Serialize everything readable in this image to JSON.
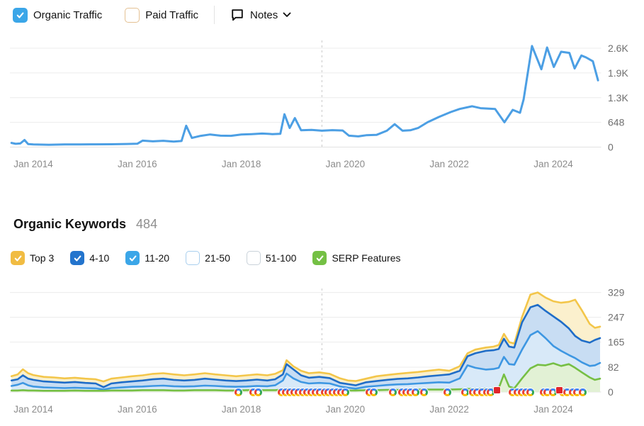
{
  "toolbar": {
    "organic_traffic": {
      "label": "Organic Traffic",
      "checked": true,
      "color": "#3ba6e8"
    },
    "paid_traffic": {
      "label": "Paid Traffic",
      "checked": false,
      "border_color": "#e4c193"
    },
    "notes": {
      "label": "Notes"
    }
  },
  "keywords_section": {
    "title": "Organic Keywords",
    "count": "484",
    "filters": [
      {
        "label": "Top 3",
        "checked": true,
        "color": "#f1bc42"
      },
      {
        "label": "4-10",
        "checked": true,
        "color": "#2374cd"
      },
      {
        "label": "11-20",
        "checked": true,
        "color": "#3ba6e8"
      },
      {
        "label": "21-50",
        "checked": false,
        "border_color": "#a9cfee"
      },
      {
        "label": "51-100",
        "checked": false,
        "border_color": "#c9d2d9"
      },
      {
        "label": "SERP Features",
        "checked": true,
        "color": "#74c044"
      }
    ]
  },
  "chart_data": [
    {
      "name": "organic-traffic",
      "type": "line",
      "title": "Organic Traffic",
      "line_color": "#4c9fe4",
      "line_width": 3,
      "xlim": [
        2013.55,
        2024.92
      ],
      "ylim": [
        0,
        2820
      ],
      "grid": true,
      "note_line_x": 2019.55,
      "x_ticks": [
        {
          "year": 2014,
          "label": "Jan 2014"
        },
        {
          "year": 2016,
          "label": "Jan 2016"
        },
        {
          "year": 2018,
          "label": "Jan 2018"
        },
        {
          "year": 2020,
          "label": "Jan 2020"
        },
        {
          "year": 2022,
          "label": "Jan 2022"
        },
        {
          "year": 2024,
          "label": "Jan 2024"
        }
      ],
      "y_ticks": [
        {
          "v": 0,
          "label": "0"
        },
        {
          "v": 648,
          "label": "648"
        },
        {
          "v": 1296,
          "label": "1.3K"
        },
        {
          "v": 1944,
          "label": "1.9K"
        },
        {
          "v": 2592,
          "label": "2.6K"
        }
      ],
      "x": [
        2013.58,
        2013.66,
        2013.75,
        2013.83,
        2013.9,
        2014.0,
        2014.3,
        2014.6,
        2014.9,
        2015.2,
        2015.5,
        2015.8,
        2016.0,
        2016.1,
        2016.3,
        2016.5,
        2016.7,
        2016.85,
        2016.94,
        2017.05,
        2017.2,
        2017.4,
        2017.6,
        2017.8,
        2018.0,
        2018.2,
        2018.4,
        2018.6,
        2018.75,
        2018.83,
        2018.93,
        2019.03,
        2019.15,
        2019.35,
        2019.55,
        2019.75,
        2019.95,
        2020.07,
        2020.25,
        2020.4,
        2020.6,
        2020.8,
        2020.95,
        2021.1,
        2021.25,
        2021.4,
        2021.58,
        2021.8,
        2022.03,
        2022.2,
        2022.44,
        2022.6,
        2022.88,
        2023.06,
        2023.22,
        2023.36,
        2023.43,
        2023.59,
        2023.77,
        2023.88,
        2024.01,
        2024.15,
        2024.31,
        2024.41,
        2024.54,
        2024.63,
        2024.76,
        2024.86
      ],
      "values": [
        110,
        85,
        95,
        185,
        80,
        70,
        62,
        68,
        70,
        72,
        75,
        82,
        88,
        170,
        150,
        165,
        145,
        160,
        560,
        240,
        290,
        330,
        300,
        295,
        330,
        340,
        355,
        340,
        350,
        860,
        500,
        760,
        440,
        450,
        430,
        445,
        435,
        300,
        280,
        310,
        320,
        430,
        600,
        430,
        440,
        500,
        650,
        790,
        920,
        1000,
        1070,
        1020,
        1000,
        650,
        975,
        900,
        1250,
        2650,
        2040,
        2610,
        2100,
        2500,
        2470,
        2060,
        2400,
        2350,
        2250,
        1750
      ]
    },
    {
      "name": "organic-keywords",
      "type": "stacked-area",
      "title": "Organic Keywords",
      "total_keywords": 484,
      "representation": "cumulative-lines",
      "xlim": [
        2013.55,
        2024.92
      ],
      "ylim": [
        0,
        345
      ],
      "grid": true,
      "note_line_x": 2019.55,
      "draw_order": [
        2,
        1,
        0,
        3
      ],
      "x_ticks": [
        {
          "year": 2014,
          "label": "Jan 2014"
        },
        {
          "year": 2016,
          "label": "Jan 2016"
        },
        {
          "year": 2018,
          "label": "Jan 2018"
        },
        {
          "year": 2020,
          "label": "Jan 2020"
        },
        {
          "year": 2022,
          "label": "Jan 2022"
        },
        {
          "year": 2024,
          "label": "Jan 2024"
        }
      ],
      "y_ticks": [
        {
          "v": 0,
          "label": "0"
        },
        {
          "v": 82,
          "label": "82"
        },
        {
          "v": 165,
          "label": "165"
        },
        {
          "v": 247,
          "label": "247"
        },
        {
          "v": 329,
          "label": "329"
        }
      ],
      "x": [
        2013.58,
        2013.7,
        2013.8,
        2013.9,
        2014.0,
        2014.2,
        2014.4,
        2014.6,
        2014.8,
        2015.0,
        2015.2,
        2015.35,
        2015.5,
        2015.7,
        2015.9,
        2016.1,
        2016.3,
        2016.5,
        2016.7,
        2016.9,
        2017.1,
        2017.3,
        2017.5,
        2017.7,
        2017.9,
        2018.1,
        2018.3,
        2018.5,
        2018.65,
        2018.8,
        2018.87,
        2019.0,
        2019.15,
        2019.3,
        2019.5,
        2019.7,
        2019.9,
        2020.05,
        2020.2,
        2020.4,
        2020.6,
        2020.8,
        2021.0,
        2021.2,
        2021.4,
        2021.6,
        2021.8,
        2022.0,
        2022.2,
        2022.35,
        2022.5,
        2022.7,
        2022.85,
        2022.95,
        2023.05,
        2023.15,
        2023.25,
        2023.4,
        2023.56,
        2023.7,
        2023.85,
        2024.0,
        2024.15,
        2024.3,
        2024.42,
        2024.55,
        2024.7,
        2024.8,
        2024.9
      ],
      "series": [
        {
          "name": "Top 3 (cumulative top line)",
          "line": "#f3c64a",
          "fill": "#fbf0cd",
          "fill_down_to": 1,
          "values": [
            52,
            58,
            75,
            62,
            56,
            50,
            48,
            45,
            47,
            44,
            42,
            35,
            44,
            48,
            52,
            55,
            60,
            62,
            58,
            55,
            58,
            62,
            58,
            55,
            52,
            55,
            58,
            55,
            60,
            72,
            105,
            85,
            70,
            62,
            65,
            60,
            45,
            38,
            36,
            44,
            52,
            56,
            60,
            63,
            66,
            70,
            74,
            70,
            85,
            128,
            140,
            147,
            150,
            155,
            192,
            165,
            160,
            248,
            322,
            329,
            312,
            300,
            295,
            298,
            305,
            270,
            225,
            212,
            216
          ]
        },
        {
          "name": "4-10 (cumulative)",
          "line": "#1f6dc8",
          "fill": "#c8ddf3",
          "fill_down_to": 2,
          "values": [
            38,
            42,
            55,
            44,
            40,
            35,
            33,
            31,
            33,
            30,
            28,
            16,
            28,
            32,
            35,
            38,
            42,
            44,
            40,
            38,
            40,
            44,
            41,
            38,
            36,
            38,
            41,
            38,
            42,
            58,
            92,
            75,
            55,
            47,
            50,
            46,
            30,
            26,
            22,
            32,
            36,
            40,
            43,
            45,
            48,
            52,
            55,
            58,
            70,
            118,
            128,
            136,
            138,
            142,
            176,
            150,
            147,
            230,
            280,
            288,
            268,
            250,
            232,
            210,
            185,
            170,
            163,
            172,
            178
          ]
        },
        {
          "name": "11-20 (cumulative)",
          "line": "#3e97e2",
          "fill": "#d8e9f8",
          "fill_down_to": "baseline",
          "values": [
            20,
            24,
            30,
            22,
            18,
            15,
            14,
            13,
            14,
            13,
            12,
            8,
            13,
            15,
            17,
            18,
            20,
            21,
            19,
            18,
            19,
            21,
            20,
            18,
            17,
            18,
            20,
            19,
            22,
            38,
            61,
            45,
            33,
            28,
            30,
            28,
            18,
            14,
            11,
            17,
            20,
            23,
            25,
            26,
            28,
            30,
            32,
            31,
            45,
            88,
            80,
            74,
            76,
            80,
            116,
            92,
            90,
            140,
            188,
            201,
            178,
            152,
            136,
            122,
            112,
            98,
            86,
            88,
            96
          ]
        },
        {
          "name": "SERP Features",
          "line": "#76bf45",
          "fill": "#e2f1d5",
          "fill_down_to": "baseline",
          "values": [
            5,
            5,
            6,
            5,
            5,
            4,
            4,
            4,
            5,
            4,
            4,
            4,
            5,
            5,
            5,
            6,
            6,
            6,
            5,
            5,
            6,
            6,
            6,
            5,
            5,
            6,
            6,
            6,
            6,
            8,
            10,
            8,
            7,
            7,
            8,
            7,
            6,
            5,
            5,
            6,
            6,
            7,
            7,
            7,
            8,
            8,
            8,
            8,
            9,
            10,
            10,
            10,
            10,
            12,
            58,
            18,
            12,
            45,
            78,
            90,
            88,
            95,
            86,
            92,
            80,
            65,
            48,
            40,
            44
          ]
        }
      ],
      "google_icon_years": [
        2017.95,
        2018.23,
        2018.33,
        2018.78,
        2018.86,
        2018.94,
        2019.02,
        2019.1,
        2019.18,
        2019.26,
        2019.35,
        2019.43,
        2019.51,
        2019.6,
        2019.68,
        2019.76,
        2019.84,
        2019.92,
        2020.0,
        2020.46,
        2020.54,
        2020.91,
        2021.09,
        2021.17,
        2021.25,
        2021.35,
        2021.52,
        2021.96,
        2022.31,
        2022.45,
        2022.53,
        2022.63,
        2022.72,
        2022.79,
        2023.22,
        2023.31,
        2023.39,
        2023.48,
        2023.56,
        2023.81,
        2023.89,
        2023.99,
        2024.18,
        2024.27,
        2024.37,
        2024.46,
        2024.56
      ],
      "red_marker_years": [
        2022.92,
        2024.12
      ]
    }
  ],
  "style": {
    "grid_color": "#ececec",
    "baseline_color": "#e2e2e2",
    "note_line_color": "#c8c8c8",
    "y_label_color": "#6f6f6f",
    "x_label_color": "#8c8c8c"
  }
}
